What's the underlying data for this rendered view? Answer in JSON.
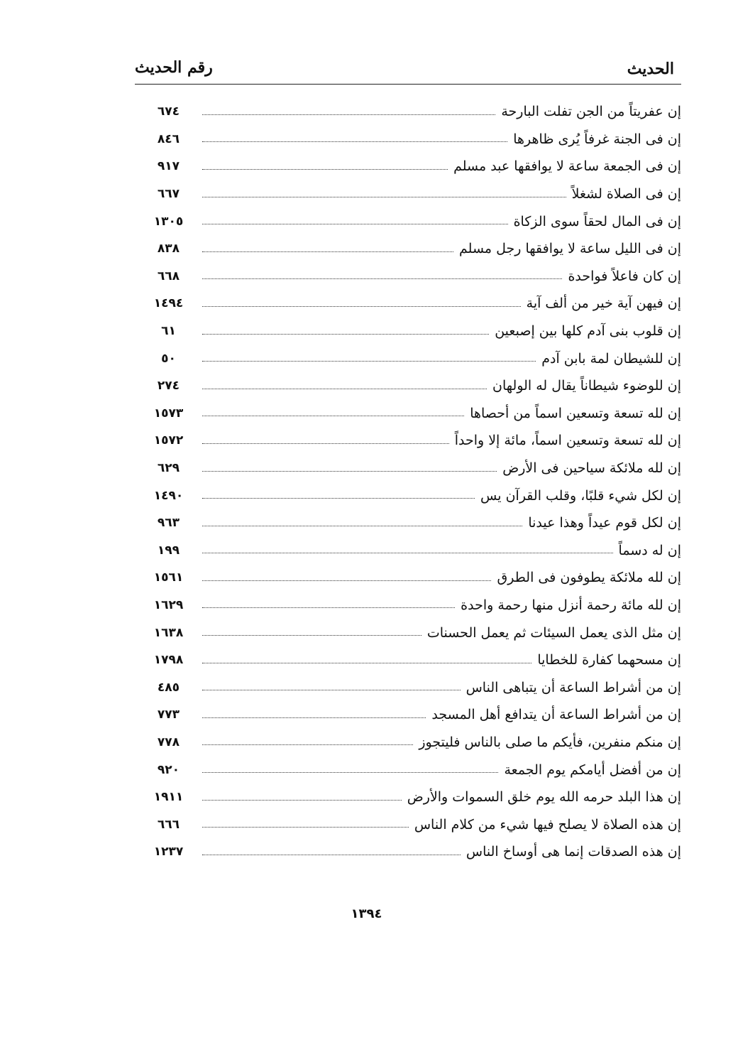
{
  "header": {
    "title_right": "الحديث",
    "title_left": "رقم الحديث"
  },
  "entries": [
    {
      "text": "إن عفريتاً من الجن تفلت البارحة",
      "number": "٦٧٤"
    },
    {
      "text": "إن فى الجنة غرفاً يُرى ظاهرها",
      "number": "٨٤٦"
    },
    {
      "text": "إن فى الجمعة ساعة لا يوافقها عبد مسلم",
      "number": "٩١٧"
    },
    {
      "text": "إن فى الصلاة لشغلاً",
      "number": "٦٦٧"
    },
    {
      "text": "إن فى المال لحقاً سوى الزكاة",
      "number": "١٣٠٥"
    },
    {
      "text": "إن فى الليل ساعة لا يوافقها رجل مسلم",
      "number": "٨٣٨"
    },
    {
      "text": "إن كان فاعلاً فواحدة",
      "number": "٦٦٨"
    },
    {
      "text": "إن فيهن آية خير من ألف آية",
      "number": "١٤٩٤"
    },
    {
      "text": "إن قلوب بنى آدم كلها بين إصبعين",
      "number": "٦١"
    },
    {
      "text": "إن للشيطان لمة بابن آدم",
      "number": "٥٠"
    },
    {
      "text": "إن للوضوء شيطاناً يقال له الولهان",
      "number": "٢٧٤"
    },
    {
      "text": "إن لله تسعة وتسعين اسماً من أحصاها",
      "number": "١٥٧٣"
    },
    {
      "text": "إن لله تسعة وتسعين اسماً، مائة إلا واحداً",
      "number": "١٥٧٢"
    },
    {
      "text": "إن لله ملائكة سياحين فى الأرض",
      "number": "٦٢٩"
    },
    {
      "text": "إن لكل شيء قلبًا، وقلب القرآن يس",
      "number": "١٤٩٠"
    },
    {
      "text": "إن لكل قوم عيداً وهذا عيدنا",
      "number": "٩٦٣"
    },
    {
      "text": "إن له دسماً",
      "number": "١٩٩"
    },
    {
      "text": "إن لله ملائكة يطوفون فى الطرق",
      "number": "١٥٦١"
    },
    {
      "text": "إن لله مائة رحمة أنزل منها رحمة واحدة",
      "number": "١٦٢٩"
    },
    {
      "text": "إن مثل الذى يعمل السيئات ثم يعمل الحسنات",
      "number": "١٦٣٨"
    },
    {
      "text": "إن مسحهما كفارة للخطايا",
      "number": "١٧٩٨"
    },
    {
      "text": "إن من أشراط الساعة أن يتباهى الناس",
      "number": "٤٨٥"
    },
    {
      "text": "إن من أشراط الساعة أن يتدافع أهل المسجد",
      "number": "٧٧٣"
    },
    {
      "text": "إن منكم منفرين، فأيكم ما صلى بالناس فليتجوز",
      "number": "٧٧٨"
    },
    {
      "text": "إن من أفضل أيامكم يوم الجمعة",
      "number": "٩٢٠"
    },
    {
      "text": "إن هذا البلد حرمه الله يوم خلق السموات والأرض",
      "number": "١٩١١"
    },
    {
      "text": "إن هذه الصلاة لا يصلح فيها شيء من كلام الناس",
      "number": "٦٦٦"
    },
    {
      "text": "إن هذه الصدقات إنما هى أوساخ الناس",
      "number": "١٢٣٧"
    }
  ],
  "page_number": "١٣٩٤"
}
